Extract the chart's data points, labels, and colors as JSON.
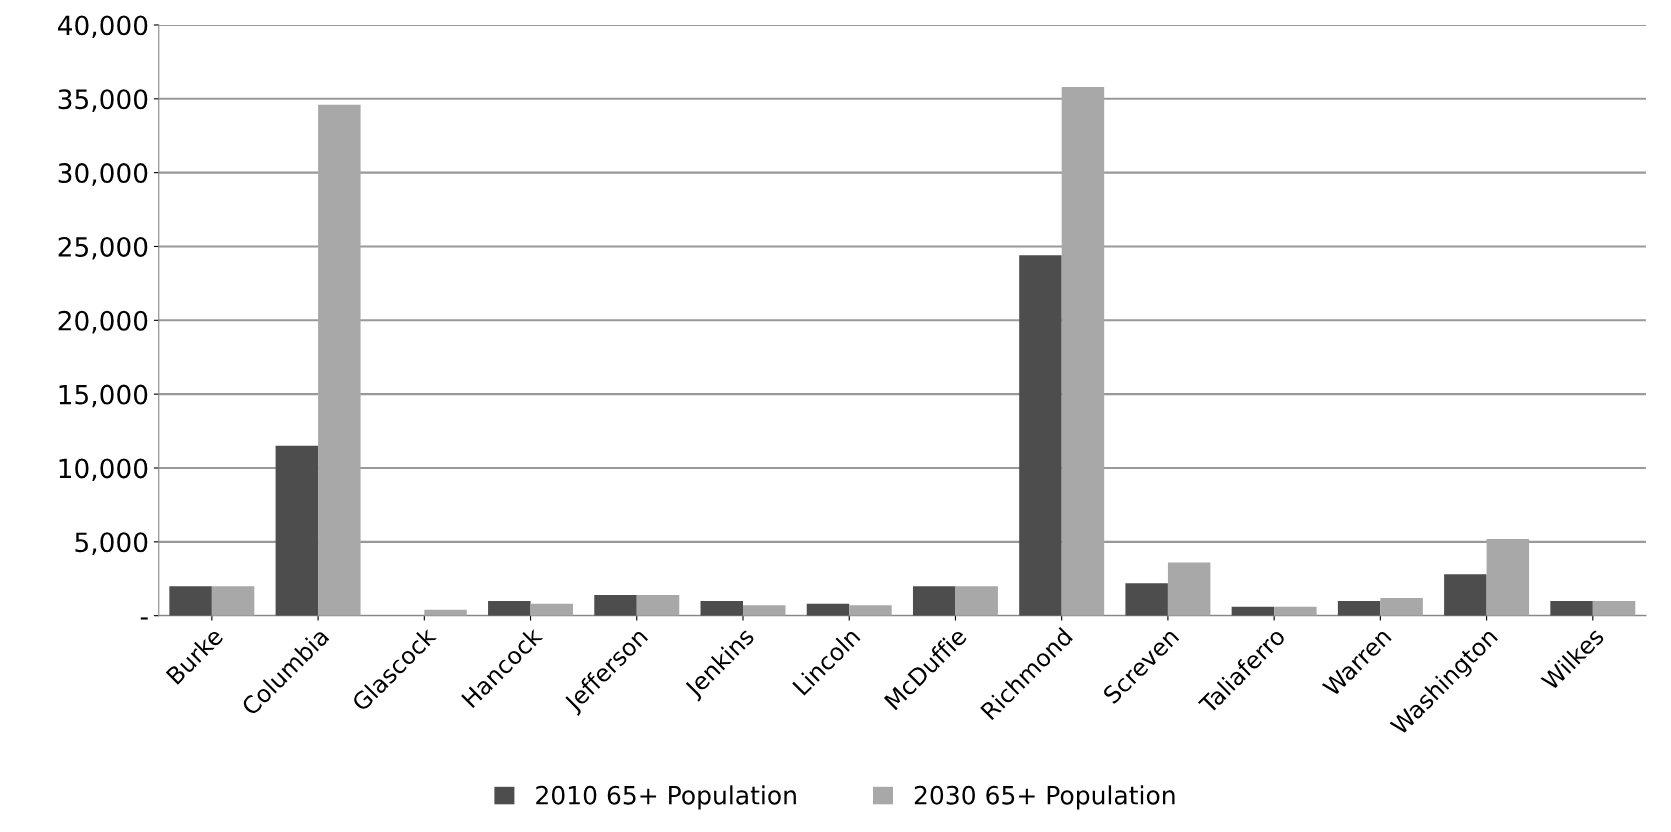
{
  "chart_data": {
    "type": "bar",
    "categories": [
      "Burke",
      "Columbia",
      "Glascock",
      "Hancock",
      "Jefferson",
      "Jenkins",
      "Lincoln",
      "McDuffie",
      "Richmond",
      "Screven",
      "Taliaferro",
      "Warren",
      "Washington",
      "Wilkes"
    ],
    "series": [
      {
        "name": "2010 65+ Population",
        "color": "#4d4d4d",
        "values": [
          2000,
          11500,
          null,
          1000,
          1400,
          1000,
          800,
          2000,
          24400,
          2200,
          600,
          1000,
          2800,
          1000
        ]
      },
      {
        "name": "2030 65+ Population",
        "color": "#a8a8a8",
        "values": [
          2000,
          34600,
          400,
          800,
          1400,
          700,
          700,
          2000,
          35800,
          3600,
          600,
          1200,
          5200,
          1000
        ]
      }
    ],
    "ylim": [
      0,
      40000
    ],
    "yticks": [
      {
        "value": 0,
        "label": "-"
      },
      {
        "value": 5000,
        "label": "5,000"
      },
      {
        "value": 10000,
        "label": "10,000"
      },
      {
        "value": 15000,
        "label": "15,000"
      },
      {
        "value": 20000,
        "label": "20,000"
      },
      {
        "value": 25000,
        "label": "25,000"
      },
      {
        "value": 30000,
        "label": "30,000"
      },
      {
        "value": 35000,
        "label": "35,000"
      },
      {
        "value": 40000,
        "label": "40,000"
      }
    ],
    "grid": "y",
    "legend": "bottom"
  }
}
